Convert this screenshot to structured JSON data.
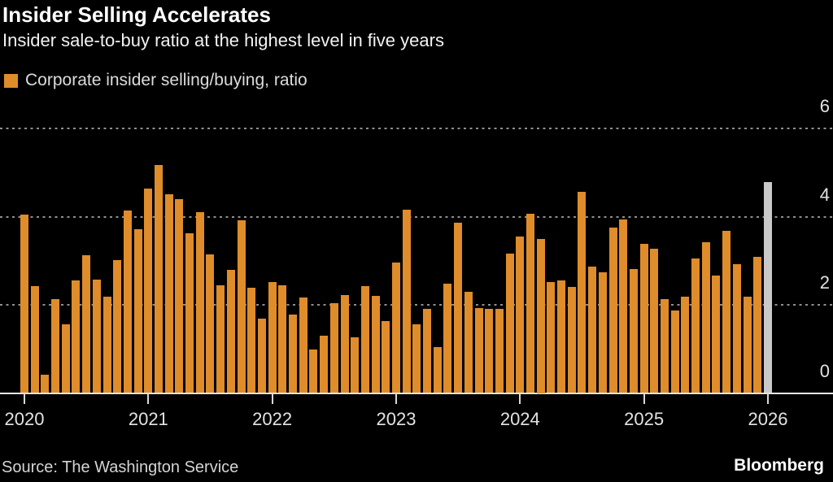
{
  "header": {
    "title": "Insider Selling Accelerates",
    "subtitle": "Insider sale-to-buy ratio at the highest level in five years"
  },
  "legend": {
    "label": "Corporate insider selling/buying, ratio"
  },
  "footer": {
    "source": "Source: The Washington Service",
    "brand": "Bloomberg"
  },
  "colors": {
    "background": "#000000",
    "bar": "#DF8C2B",
    "bar_highlight": "#C9C9C9",
    "grid_dots": "#8F8F8F",
    "axis_line": "#E6E6E6",
    "axis_text": "#E3E3E3",
    "title_text": "#FFFFFF"
  },
  "chart_data": {
    "type": "bar",
    "title": "Insider Selling Accelerates",
    "subtitle": "Insider sale-to-buy ratio at the highest level in five years",
    "series_name": "Corporate insider selling/buying, ratio",
    "frequency": "monthly",
    "start": "2020-01",
    "end": "2026-01",
    "values": [
      4.05,
      2.42,
      0.42,
      2.12,
      1.56,
      2.55,
      3.13,
      2.58,
      2.18,
      3.01,
      4.13,
      3.71,
      4.64,
      5.17,
      4.51,
      4.4,
      3.62,
      4.1,
      3.14,
      2.45,
      2.8,
      3.92,
      2.38,
      1.68,
      2.51,
      2.45,
      1.77,
      2.17,
      0.99,
      1.3,
      2.03,
      2.23,
      1.27,
      2.42,
      2.2,
      1.64,
      2.95,
      4.15,
      1.56,
      1.91,
      1.05,
      2.48,
      3.87,
      2.3,
      1.93,
      1.91,
      1.91,
      3.17,
      3.54,
      4.07,
      3.5,
      2.51,
      2.55,
      2.41,
      4.56,
      2.87,
      2.74,
      3.76,
      3.93,
      2.82,
      3.38,
      3.28,
      2.13,
      1.88,
      2.19,
      3.05,
      3.42,
      2.67,
      3.67,
      2.92,
      2.18,
      3.09,
      4.78
    ],
    "last_point_highlighted": true,
    "x_tick_labels": [
      "2020",
      "2021",
      "2022",
      "2023",
      "2024",
      "2025",
      "2026"
    ],
    "y_ticks": [
      0,
      2,
      4,
      6
    ],
    "ylim": [
      0,
      6.5
    ],
    "y_axis_side": "right",
    "grid": "horizontal-dotted",
    "legend_position": "top-left"
  }
}
